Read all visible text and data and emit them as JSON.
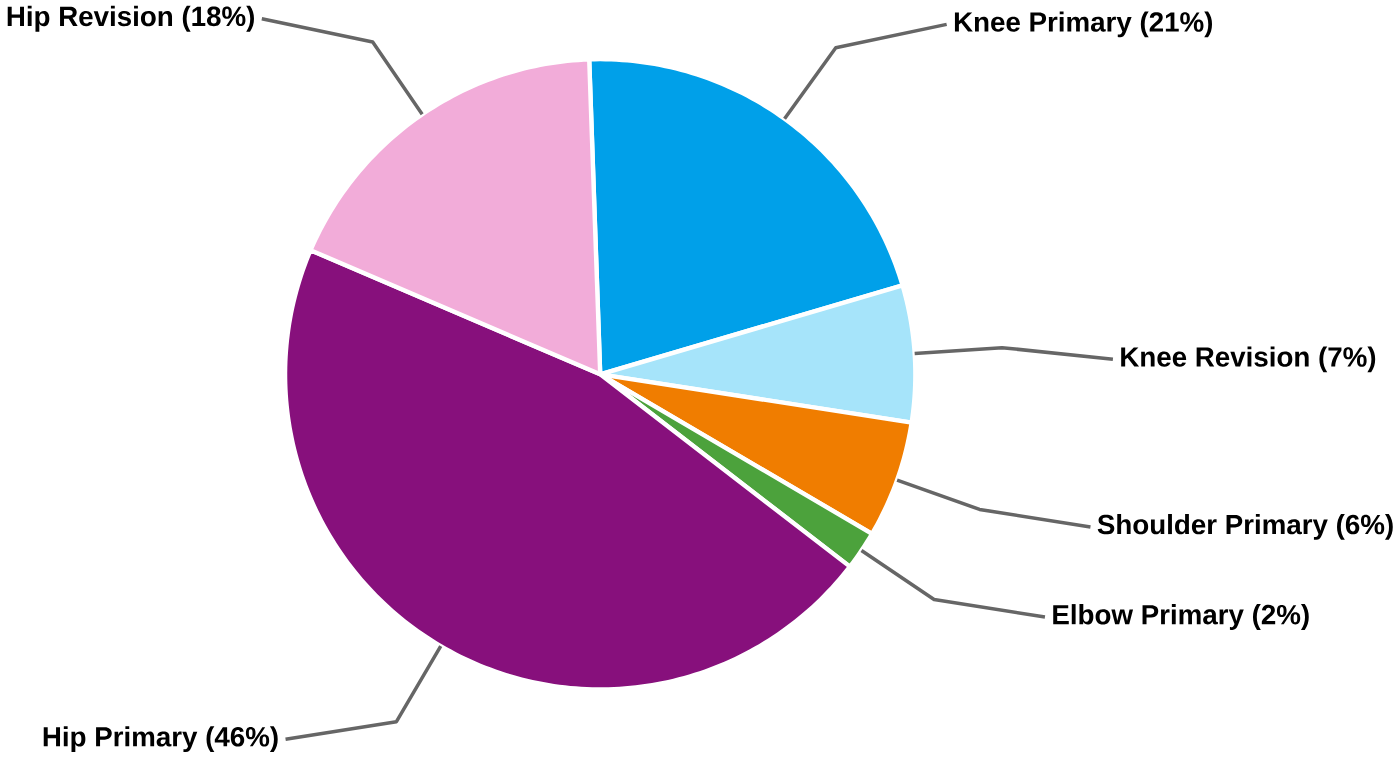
{
  "chart_data": {
    "type": "pie",
    "categories": [
      "Knee Primary (21%)",
      "Knee Revision (7%)",
      "Shoulder Primary (6%)",
      "Elbow Primary (2%)",
      "Hip Primary (46%)",
      "Hip Revision (18%)"
    ],
    "values": [
      21,
      7,
      6,
      2,
      46,
      18
    ],
    "colors": [
      "#00a0e9",
      "#a6e4fa",
      "#f07d00",
      "#4ca23c",
      "#87107c",
      "#f2acd9"
    ]
  }
}
